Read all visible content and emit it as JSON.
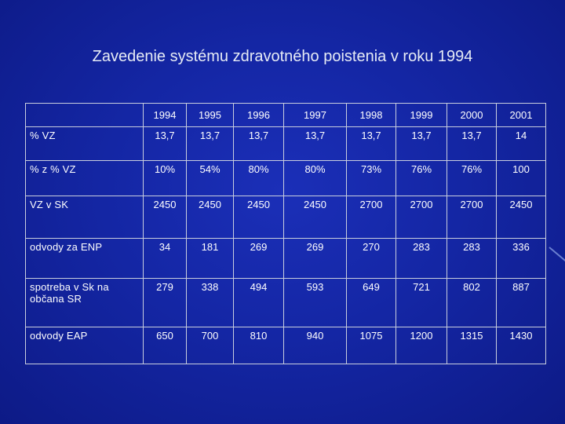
{
  "title": "Zavedenie systému zdravotného poistenia v roku 1994",
  "table": {
    "corner": "",
    "years": [
      "1994",
      "1995",
      "1996",
      "1997",
      "1998",
      "1999",
      "2000",
      "2001"
    ],
    "rows": [
      {
        "label": "% VZ",
        "values": [
          "13,7",
          "13,7",
          "13,7",
          "13,7",
          "13,7",
          "13,7",
          "13,7",
          "14"
        ]
      },
      {
        "label": "% z % VZ",
        "values": [
          "10%",
          "54%",
          "80%",
          "80%",
          "73%",
          "76%",
          "76%",
          "100"
        ]
      },
      {
        "label": "VZ v SK",
        "values": [
          "2450",
          "2450",
          "2450",
          "2450",
          "2700",
          "2700",
          "2700",
          "2450"
        ]
      },
      {
        "label": "odvody za ENP",
        "values": [
          "34",
          "181",
          "269",
          "269",
          "270",
          "283",
          "283",
          "336"
        ]
      },
      {
        "label": "spotreba v Sk na občana SR",
        "values": [
          "279",
          "338",
          "494",
          "593",
          "649",
          "721",
          "802",
          "887"
        ]
      },
      {
        "label": "odvody EAP",
        "values": [
          "650",
          "700",
          "810",
          "940",
          "1075",
          "1200",
          "1315",
          "1430"
        ]
      }
    ]
  }
}
